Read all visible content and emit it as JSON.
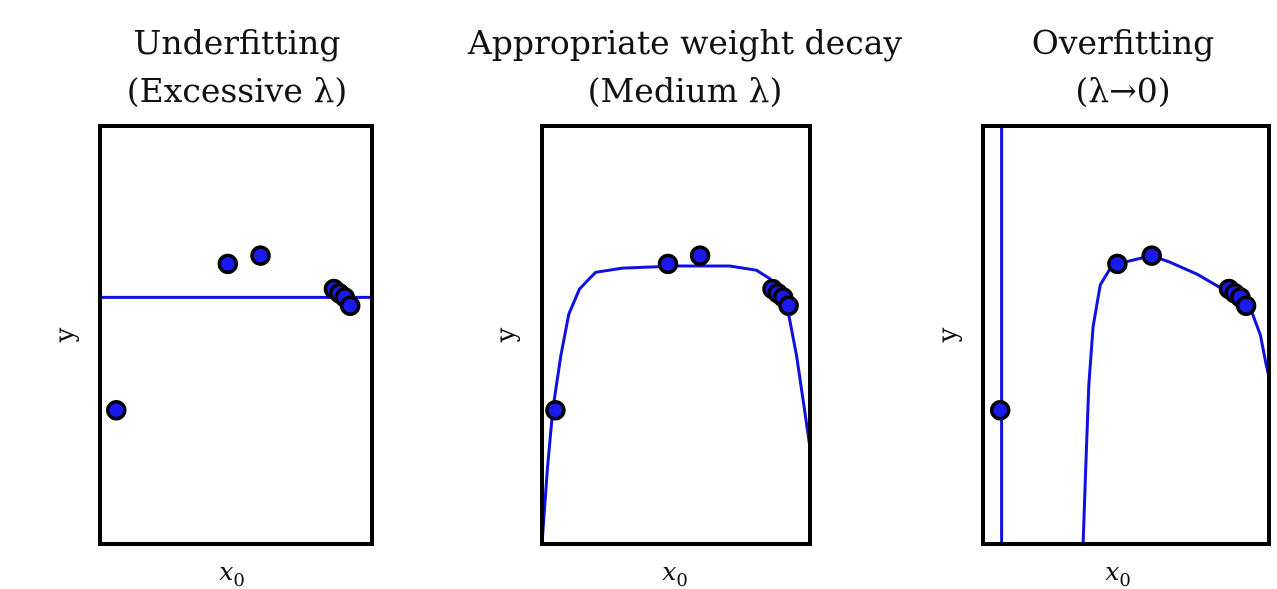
{
  "chart_data": [
    {
      "type": "line",
      "title": [
        "Underfitting",
        "(Excessive λ)"
      ],
      "xlabel": "x",
      "xlabel_subscript": "0",
      "ylabel": "y",
      "xlim": [
        0,
        1
      ],
      "ylim": [
        0,
        1
      ],
      "grid": false,
      "curve_color": "#1010e0",
      "point_fill": "#1a1aee",
      "point_edge": "#000000",
      "points": [
        {
          "x": 0.06,
          "y": 0.32
        },
        {
          "x": 0.47,
          "y": 0.67
        },
        {
          "x": 0.59,
          "y": 0.69
        },
        {
          "x": 0.86,
          "y": 0.61
        },
        {
          "x": 0.88,
          "y": 0.6
        },
        {
          "x": 0.9,
          "y": 0.59
        },
        {
          "x": 0.92,
          "y": 0.57
        }
      ],
      "curve": [
        {
          "x": 0,
          "y": 0.59
        },
        {
          "x": 1,
          "y": 0.59
        }
      ]
    },
    {
      "type": "line",
      "title": [
        "Appropriate weight decay",
        "(Medium λ)"
      ],
      "xlabel": "x",
      "xlabel_subscript": "0",
      "ylabel": "y",
      "xlim": [
        0,
        1
      ],
      "ylim": [
        0,
        1
      ],
      "grid": false,
      "curve_color": "#1010e0",
      "point_fill": "#1a1aee",
      "point_edge": "#000000",
      "points": [
        {
          "x": 0.05,
          "y": 0.32
        },
        {
          "x": 0.47,
          "y": 0.67
        },
        {
          "x": 0.59,
          "y": 0.69
        },
        {
          "x": 0.86,
          "y": 0.61
        },
        {
          "x": 0.88,
          "y": 0.6
        },
        {
          "x": 0.9,
          "y": 0.59
        },
        {
          "x": 0.92,
          "y": 0.57
        }
      ],
      "curve": [
        {
          "x": 0.0,
          "y": 0.0
        },
        {
          "x": 0.02,
          "y": 0.18
        },
        {
          "x": 0.04,
          "y": 0.32
        },
        {
          "x": 0.07,
          "y": 0.45
        },
        {
          "x": 0.1,
          "y": 0.55
        },
        {
          "x": 0.14,
          "y": 0.61
        },
        {
          "x": 0.2,
          "y": 0.65
        },
        {
          "x": 0.3,
          "y": 0.66
        },
        {
          "x": 0.5,
          "y": 0.665
        },
        {
          "x": 0.7,
          "y": 0.665
        },
        {
          "x": 0.8,
          "y": 0.655
        },
        {
          "x": 0.85,
          "y": 0.635
        },
        {
          "x": 0.89,
          "y": 0.6
        },
        {
          "x": 0.92,
          "y": 0.55
        },
        {
          "x": 0.95,
          "y": 0.45
        },
        {
          "x": 0.98,
          "y": 0.32
        },
        {
          "x": 1.0,
          "y": 0.23
        }
      ]
    },
    {
      "type": "line",
      "title": [
        "Overfitting",
        "(λ→0)"
      ],
      "xlabel": "x",
      "xlabel_subscript": "0",
      "ylabel": "y",
      "xlim": [
        0,
        1
      ],
      "ylim": [
        0,
        1
      ],
      "grid": false,
      "curve_color": "#1010e0",
      "point_fill": "#1a1aee",
      "point_edge": "#000000",
      "points": [
        {
          "x": 0.06,
          "y": 0.32
        },
        {
          "x": 0.47,
          "y": 0.67
        },
        {
          "x": 0.59,
          "y": 0.69
        },
        {
          "x": 0.86,
          "y": 0.61
        },
        {
          "x": 0.88,
          "y": 0.6
        },
        {
          "x": 0.9,
          "y": 0.59
        },
        {
          "x": 0.92,
          "y": 0.57
        }
      ],
      "curve_segments": [
        [
          {
            "x": 0.065,
            "y": 1.0
          },
          {
            "x": 0.065,
            "y": 0.0
          }
        ],
        [
          {
            "x": 0.35,
            "y": 0.0
          },
          {
            "x": 0.36,
            "y": 0.2
          },
          {
            "x": 0.37,
            "y": 0.38
          },
          {
            "x": 0.385,
            "y": 0.52
          },
          {
            "x": 0.41,
            "y": 0.62
          },
          {
            "x": 0.45,
            "y": 0.665
          },
          {
            "x": 0.5,
            "y": 0.675
          },
          {
            "x": 0.59,
            "y": 0.69
          },
          {
            "x": 0.65,
            "y": 0.675
          },
          {
            "x": 0.75,
            "y": 0.645
          },
          {
            "x": 0.85,
            "y": 0.605
          },
          {
            "x": 0.9,
            "y": 0.585
          },
          {
            "x": 0.94,
            "y": 0.555
          },
          {
            "x": 0.97,
            "y": 0.5
          },
          {
            "x": 0.99,
            "y": 0.43
          },
          {
            "x": 1.0,
            "y": 0.4
          }
        ]
      ]
    }
  ]
}
